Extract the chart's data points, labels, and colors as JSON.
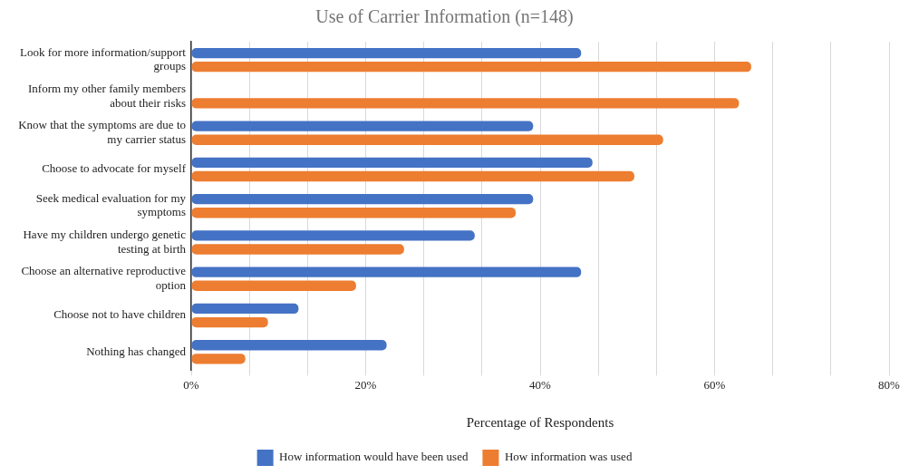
{
  "chart_data": {
    "type": "bar",
    "orientation": "horizontal",
    "title": "Use of Carrier Information (n=148)",
    "xlabel": "Percentage of Respondents",
    "categories": [
      "Look for more information/support groups",
      "Inform my other family members about their risks",
      "Know that the symptoms are due to my carrier status",
      "Choose to advocate for myself",
      "Seek medical evaluation for my symptoms",
      "Have my children undergo genetic testing at birth",
      "Choose an alternative reproductive option",
      "Choose not to have children",
      "Nothing has changed"
    ],
    "series": [
      {
        "name": "How information would have been used",
        "color": "#4472c4",
        "values": [
          44.7,
          null,
          39.2,
          46.0,
          39.2,
          32.5,
          44.7,
          12.3,
          22.4
        ]
      },
      {
        "name": "How information was used",
        "color": "#ed7d31",
        "values": [
          64.2,
          62.8,
          54.1,
          50.8,
          37.2,
          24.4,
          18.9,
          8.8,
          6.2
        ]
      }
    ],
    "xlim": [
      0,
      80
    ],
    "xticks": [
      {
        "value": 0,
        "label": "0%"
      },
      {
        "value": 6.667,
        "label": null
      },
      {
        "value": 13.333,
        "label": null
      },
      {
        "value": 20,
        "label": "20%"
      },
      {
        "value": 26.667,
        "label": null
      },
      {
        "value": 33.333,
        "label": null
      },
      {
        "value": 40,
        "label": "40%"
      },
      {
        "value": 46.667,
        "label": null
      },
      {
        "value": 53.333,
        "label": null
      },
      {
        "value": 60,
        "label": "60%"
      },
      {
        "value": 66.667,
        "label": null
      },
      {
        "value": 73.333,
        "label": null
      },
      {
        "value": 80,
        "label": "80%"
      }
    ],
    "grid": "x",
    "legend": "bottom"
  }
}
